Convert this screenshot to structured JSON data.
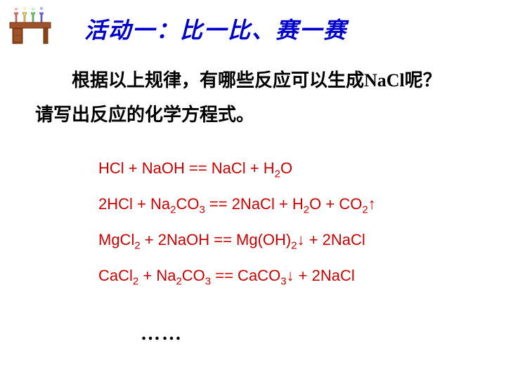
{
  "title": "活动一：比一比、赛一赛",
  "question_line1": "　　根据以上规律，有哪些反应可以生成NaCl呢？",
  "question_line2": "请写出反应的化学方程式。",
  "equations": {
    "eq1": {
      "parts": [
        "HCl",
        " + ",
        "NaOH",
        " == ",
        "NaCl",
        " + ",
        "H",
        "2",
        "O"
      ],
      "sub_indices": [
        7
      ]
    },
    "eq2": {
      "parts": [
        "2HCl",
        " + ",
        "Na",
        "2",
        "CO",
        "3",
        " == ",
        "2NaCl",
        " + ",
        "H",
        "2",
        "O",
        " + ",
        "CO",
        "2",
        "↑"
      ],
      "sub_indices": [
        3,
        5,
        10,
        14
      ]
    },
    "eq3": {
      "parts": [
        "MgCl",
        "2",
        " + ",
        "2NaOH",
        " == ",
        "Mg(OH)",
        "2",
        "↓",
        " + ",
        " 2NaCl"
      ],
      "sub_indices": [
        1,
        6
      ]
    },
    "eq4": {
      "parts": [
        "CaCl",
        "2",
        " + ",
        "Na",
        "2",
        "CO",
        "3",
        " == ",
        "CaCO",
        "3",
        "↓",
        " + ",
        " 2NaCl"
      ],
      "sub_indices": [
        1,
        4,
        6,
        9
      ]
    }
  },
  "ellipsis": "……",
  "colors": {
    "title": "#0000cc",
    "question": "#000000",
    "equation": "#cc0000",
    "background": "#ffffff"
  },
  "fontsizes": {
    "title": 32,
    "question": 26,
    "equation": 22,
    "ellipsis": 28
  },
  "icon": {
    "name": "lab-desk",
    "desk_color": "#a0522d",
    "flask_colors": [
      "#ff4444",
      "#ffcc00",
      "#44ff44",
      "#4444ff"
    ]
  }
}
